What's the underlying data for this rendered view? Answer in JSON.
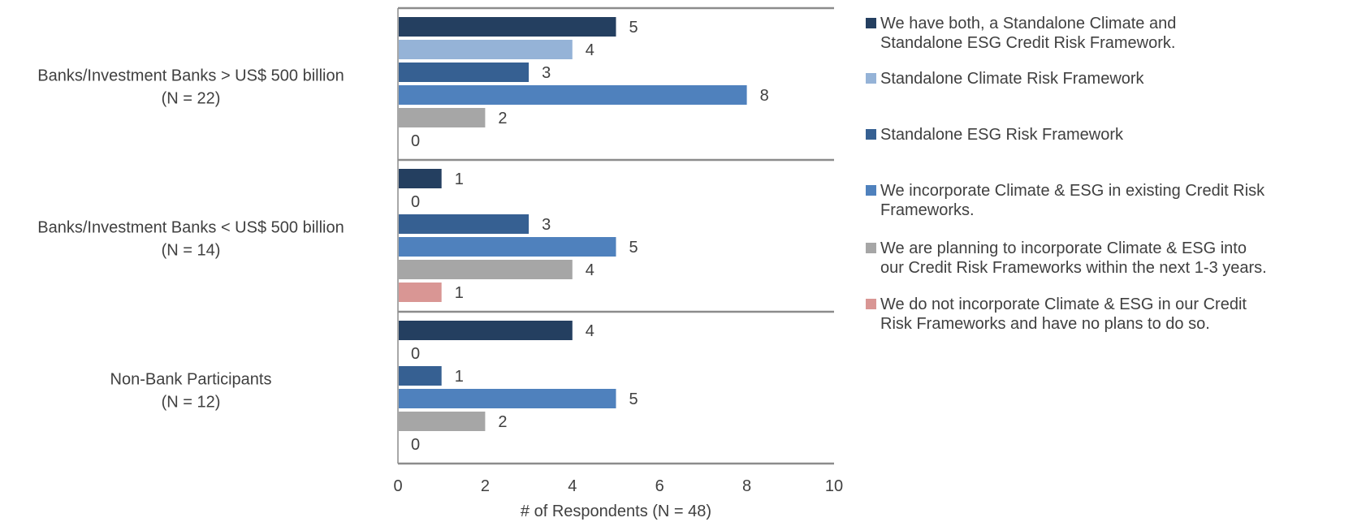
{
  "chart_data": {
    "type": "bar",
    "orientation": "horizontal",
    "categories": [
      {
        "name": "Banks/Investment Banks > US$ 500 billion",
        "sub": "(N = 22)"
      },
      {
        "name": "Banks/Investment Banks < US$ 500 billion",
        "sub": "(N = 14)"
      },
      {
        "name": "Non-Bank Participants",
        "sub": "(N = 12)"
      }
    ],
    "series": [
      {
        "name": "We have both, a Standalone Climate and Standalone ESG Credit Risk Framework.",
        "legend_lines": [
          "We have both, a Standalone Climate and",
          "Standalone ESG Credit Risk Framework."
        ],
        "color": "#243F60",
        "values": [
          5,
          1,
          4
        ]
      },
      {
        "name": "Standalone Climate Risk Framework",
        "legend_lines": [
          "Standalone Climate Risk Framework"
        ],
        "color": "#95B3D7",
        "values": [
          4,
          0,
          0
        ]
      },
      {
        "name": "Standalone ESG Risk Framework",
        "legend_lines": [
          "Standalone ESG Risk Framework"
        ],
        "color": "#366092",
        "values": [
          3,
          3,
          1
        ]
      },
      {
        "name": "We incorporate Climate & ESG in existing Credit Risk Frameworks.",
        "legend_lines": [
          "We incorporate Climate & ESG in existing Credit Risk",
          "Frameworks."
        ],
        "color": "#4F81BD",
        "values": [
          8,
          5,
          5
        ]
      },
      {
        "name": "We are planning to incorporate Climate & ESG into our Credit Risk Frameworks within the next 1-3 years.",
        "legend_lines": [
          "We are planning to incorporate Climate & ESG into",
          "our Credit Risk Frameworks within the next 1-3 years."
        ],
        "color": "#A6A6A6",
        "values": [
          2,
          4,
          2
        ]
      },
      {
        "name": "We do not incorporate Climate & ESG in our Credit Risk Frameworks and have no plans to do so.",
        "legend_lines": [
          "We do not incorporate Climate & ESG in our Credit",
          "Risk Frameworks and have no plans to do so."
        ],
        "color": "#D99694",
        "values": [
          0,
          1,
          0
        ]
      }
    ],
    "xlim": [
      0,
      10
    ],
    "xticks": [
      0,
      2,
      4,
      6,
      8,
      10
    ],
    "xlabel": "# of Respondents (N = 48)",
    "ylabel": "",
    "title": "",
    "grid": false,
    "legend_position": "right"
  }
}
